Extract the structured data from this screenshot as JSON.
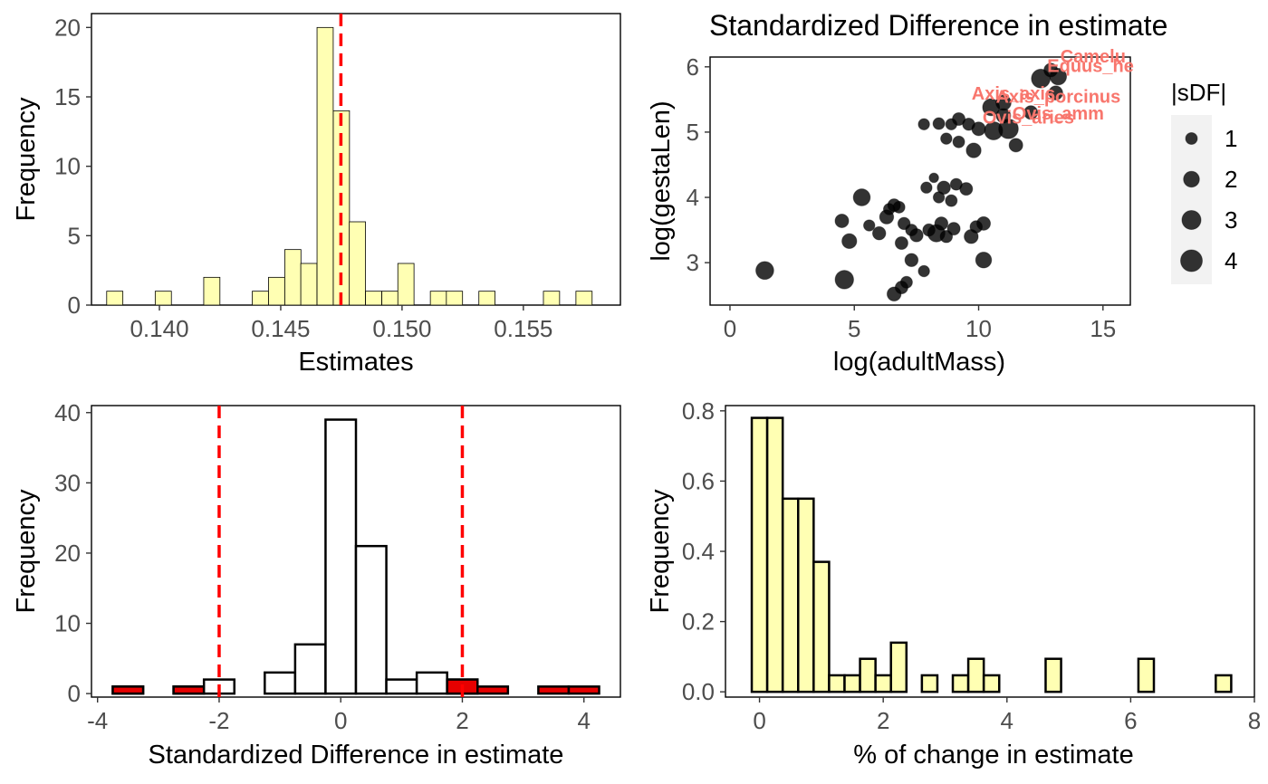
{
  "colors": {
    "yellow_fill": "#FFFFB3",
    "red_fill": "#E60000",
    "white_fill": "#FFFFFF",
    "dashed_line": "#FF0000",
    "point_fill": "#000000",
    "label_color": "#F8766D",
    "legend_key_bg": "#F2F2F2"
  },
  "chart_data": [
    {
      "type": "bar",
      "title": "",
      "xlabel": "Estimates",
      "ylabel": "Frequency",
      "xlim": [
        0.1372,
        0.159
      ],
      "ylim": [
        0,
        21
      ],
      "x_ticks": [
        0.14,
        0.145,
        0.15,
        0.155
      ],
      "x_tick_labels": [
        "0.140",
        "0.145",
        "0.150",
        "0.155"
      ],
      "y_ticks": [
        0,
        5,
        10,
        15,
        20
      ],
      "bin_width": 0.000667,
      "bin_centers": [
        0.13816,
        0.13883,
        0.1395,
        0.14016,
        0.14083,
        0.1415,
        0.14216,
        0.14283,
        0.1435,
        0.14416,
        0.14483,
        0.1455,
        0.14616,
        0.14683,
        0.1475,
        0.14816,
        0.14883,
        0.1495,
        0.15016,
        0.15083,
        0.1515,
        0.15216,
        0.15283,
        0.1535,
        0.15416,
        0.15483,
        0.1555,
        0.15616,
        0.15683,
        0.1575,
        0.15816
      ],
      "counts": [
        1,
        0,
        0,
        1,
        0,
        0,
        2,
        0,
        0,
        1,
        2,
        4,
        3,
        20,
        14,
        6,
        1,
        1,
        3,
        0,
        1,
        1,
        0,
        1,
        0,
        0,
        0,
        1,
        0,
        1,
        0
      ],
      "vline": 0.14748,
      "grid": false
    },
    {
      "type": "scatter",
      "title": "Standardized Difference in estimate",
      "xlabel": "log(adultMass)",
      "ylabel": "log(gestaLen)",
      "xlim": [
        -0.8,
        16.1
      ],
      "ylim": [
        2.35,
        6.15
      ],
      "x_ticks": [
        0,
        5,
        10,
        15
      ],
      "y_ticks": [
        3,
        4,
        5,
        6
      ],
      "legend": {
        "title": "|sDF|",
        "position": "right",
        "entries": [
          1,
          2,
          3,
          4
        ]
      },
      "points": [
        {
          "x": 1.4,
          "y": 2.88,
          "s": 2.6
        },
        {
          "x": 4.6,
          "y": 2.74,
          "s": 2.8
        },
        {
          "x": 6.6,
          "y": 2.52,
          "s": 1.5
        },
        {
          "x": 6.9,
          "y": 2.62,
          "s": 1.2
        },
        {
          "x": 7.1,
          "y": 2.7,
          "s": 1.0
        },
        {
          "x": 7.3,
          "y": 3.04,
          "s": 1.3
        },
        {
          "x": 7.8,
          "y": 2.87,
          "s": 0.9
        },
        {
          "x": 10.2,
          "y": 3.04,
          "s": 2.0
        },
        {
          "x": 4.8,
          "y": 3.33,
          "s": 1.7
        },
        {
          "x": 4.5,
          "y": 3.64,
          "s": 1.4
        },
        {
          "x": 5.6,
          "y": 3.57,
          "s": 0.9
        },
        {
          "x": 5.3,
          "y": 4.0,
          "s": 2.3
        },
        {
          "x": 6.0,
          "y": 3.45,
          "s": 1.3
        },
        {
          "x": 6.3,
          "y": 3.7,
          "s": 1.5
        },
        {
          "x": 6.6,
          "y": 3.88,
          "s": 1.2
        },
        {
          "x": 6.4,
          "y": 3.82,
          "s": 0.9
        },
        {
          "x": 6.8,
          "y": 3.85,
          "s": 1.0
        },
        {
          "x": 7.0,
          "y": 3.6,
          "s": 1.1
        },
        {
          "x": 6.9,
          "y": 3.3,
          "s": 1.2
        },
        {
          "x": 7.3,
          "y": 3.5,
          "s": 1.0
        },
        {
          "x": 7.5,
          "y": 3.42,
          "s": 1.3
        },
        {
          "x": 8.0,
          "y": 3.5,
          "s": 1.1
        },
        {
          "x": 8.3,
          "y": 3.45,
          "s": 2.4
        },
        {
          "x": 8.5,
          "y": 3.6,
          "s": 1.3
        },
        {
          "x": 8.7,
          "y": 3.4,
          "s": 1.1
        },
        {
          "x": 9.0,
          "y": 3.52,
          "s": 1.2
        },
        {
          "x": 9.7,
          "y": 3.4,
          "s": 1.5
        },
        {
          "x": 10.2,
          "y": 3.6,
          "s": 1.4
        },
        {
          "x": 9.9,
          "y": 3.55,
          "s": 1.1
        },
        {
          "x": 7.9,
          "y": 4.15,
          "s": 0.9
        },
        {
          "x": 8.2,
          "y": 4.3,
          "s": 0.6
        },
        {
          "x": 8.4,
          "y": 4.0,
          "s": 0.9
        },
        {
          "x": 8.6,
          "y": 4.15,
          "s": 1.3
        },
        {
          "x": 8.9,
          "y": 3.95,
          "s": 1.0
        },
        {
          "x": 9.5,
          "y": 4.13,
          "s": 1.2
        },
        {
          "x": 9.1,
          "y": 4.2,
          "s": 1.0
        },
        {
          "x": 7.8,
          "y": 5.12,
          "s": 0.9
        },
        {
          "x": 8.4,
          "y": 5.13,
          "s": 1.0
        },
        {
          "x": 8.9,
          "y": 5.12,
          "s": 0.9
        },
        {
          "x": 9.2,
          "y": 5.2,
          "s": 1.2
        },
        {
          "x": 9.6,
          "y": 5.12,
          "s": 1.1
        },
        {
          "x": 10.0,
          "y": 5.05,
          "s": 1.4
        },
        {
          "x": 9.8,
          "y": 4.72,
          "s": 1.7
        },
        {
          "x": 9.2,
          "y": 4.85,
          "s": 1.0
        },
        {
          "x": 8.7,
          "y": 4.9,
          "s": 0.9
        },
        {
          "x": 10.6,
          "y": 5.02,
          "s": 2.7
        },
        {
          "x": 11.2,
          "y": 5.05,
          "s": 3.2
        },
        {
          "x": 11.0,
          "y": 5.25,
          "s": 1.6
        },
        {
          "x": 11.5,
          "y": 4.8,
          "s": 1.4
        },
        {
          "x": 10.5,
          "y": 5.38,
          "s": 2.3
        },
        {
          "x": 11.0,
          "y": 5.45,
          "s": 1.8
        },
        {
          "x": 12.1,
          "y": 5.3,
          "s": 1.4
        },
        {
          "x": 12.5,
          "y": 5.82,
          "s": 2.9
        },
        {
          "x": 13.2,
          "y": 5.85,
          "s": 2.2
        },
        {
          "x": 13.1,
          "y": 5.6,
          "s": 1.5
        },
        {
          "x": 12.9,
          "y": 5.95,
          "s": 1.4
        }
      ],
      "labels": [
        {
          "text": "Camelu",
          "x": 14.6,
          "y": 6.07
        },
        {
          "text": "Equus_he",
          "x": 14.5,
          "y": 5.92
        },
        {
          "text": "Axis_axis",
          "x": 11.4,
          "y": 5.5
        },
        {
          "text": "Axis_porcinus",
          "x": 13.2,
          "y": 5.45
        },
        {
          "text": "Ovis_amm",
          "x": 13.2,
          "y": 5.19
        },
        {
          "text": "Ovis_aries",
          "x": 12.0,
          "y": 5.13
        }
      ],
      "grid": false
    },
    {
      "type": "bar",
      "title": "",
      "xlabel": "Standardized Difference in estimate",
      "ylabel": "Frequency",
      "xlim": [
        -4.1,
        4.6
      ],
      "ylim": [
        -0.5,
        41
      ],
      "x_ticks": [
        -4,
        -2,
        0,
        2,
        4
      ],
      "y_ticks": [
        0,
        10,
        20,
        30,
        40
      ],
      "bin_width": 0.5,
      "bin_centers": [
        -3.5,
        -3.0,
        -2.5,
        -2.0,
        -1.5,
        -1.0,
        -0.5,
        0.0,
        0.5,
        1.0,
        1.5,
        2.0,
        2.5,
        3.0,
        3.5,
        4.0
      ],
      "counts": [
        1,
        0,
        1,
        2,
        0,
        3,
        7,
        39,
        21,
        2,
        3,
        2,
        0,
        0,
        0,
        0
      ],
      "outlier_counts": [
        1,
        0,
        1,
        0,
        0,
        0,
        0,
        0,
        0,
        0,
        0,
        2,
        1,
        0,
        1,
        1
      ],
      "vlines": [
        -2,
        2
      ],
      "grid": false
    },
    {
      "type": "bar",
      "title": "",
      "xlabel": "% of change in estimate",
      "ylabel": "Frequency",
      "xlim": [
        -0.55,
        8.0
      ],
      "ylim": [
        -0.015,
        0.815
      ],
      "x_ticks": [
        0,
        2,
        4,
        6,
        8
      ],
      "y_ticks": [
        0.0,
        0.2,
        0.4,
        0.6,
        0.8
      ],
      "y_tick_labels": [
        "0.0",
        "0.2",
        "0.4",
        "0.6",
        "0.8"
      ],
      "bin_width": 0.25,
      "bin_start": -0.125,
      "densities": [
        0.78,
        0.78,
        0.55,
        0.55,
        0.37,
        0.047,
        0.047,
        0.094,
        0.047,
        0.14,
        0,
        0.047,
        0,
        0.047,
        0.094,
        0.047,
        0,
        0,
        0,
        0.094,
        0,
        0,
        0,
        0,
        0,
        0.094,
        0,
        0,
        0,
        0,
        0.047
      ],
      "grid": false
    }
  ]
}
